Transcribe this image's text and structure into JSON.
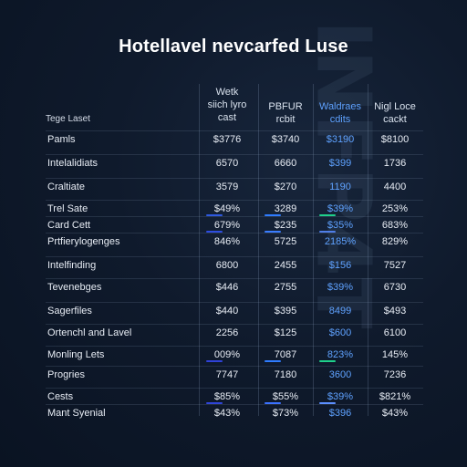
{
  "watermark": "INFP4T",
  "chart_data": {
    "type": "table",
    "title": "Hotellavel nevcarfed Luse",
    "columns": [
      {
        "label": "Wetk\nsiich lyro\ncast",
        "color": "#d9e2ee"
      },
      {
        "label": "PBFUR\nrcbit",
        "color": "#d9e2ee"
      },
      {
        "label": "Waldraes\ncdits",
        "color": "#5fa2ff"
      },
      {
        "label": "Nigl Loce\ncackt",
        "color": "#d9e2ee"
      }
    ],
    "corner_label": "Tege Laset",
    "rows": [
      {
        "label": "Pamls",
        "values": [
          "$3776",
          "$3740",
          "$3190",
          "$8100"
        ]
      },
      {
        "label": "Intelalidiats",
        "values": [
          "6570",
          "6660",
          "$399",
          "1736"
        ]
      },
      {
        "label": "Craltiate",
        "values": [
          "3579",
          "$270",
          "1190",
          "4400"
        ]
      },
      {
        "label": "Trel Sate",
        "values": [
          "$49%",
          "3289",
          "$39%",
          "253%"
        ],
        "markers": [
          "#2f5ae0",
          "#2f7cff",
          "#1fd08b"
        ]
      },
      {
        "label": "Card Cett",
        "values": [
          "679%",
          "$235",
          "$35%",
          "683%"
        ],
        "markers": [
          "#2d4de0",
          "#3a7cff",
          "#4f7ee8"
        ]
      },
      {
        "label": "Prtfierylogenges",
        "values": [
          "846%",
          "5725",
          "2185%",
          "829%"
        ]
      },
      {
        "label": "Intelfinding",
        "values": [
          "6800",
          "2455",
          "$156",
          "7527"
        ]
      },
      {
        "label": "Tevenebges",
        "values": [
          "$446",
          "2755",
          "$39%",
          "6730"
        ]
      },
      {
        "label": "Sagerfiles",
        "values": [
          "$440",
          "$395",
          "8499",
          "$493"
        ]
      },
      {
        "label": "Ortenchl and Lavel",
        "values": [
          "2256",
          "$125",
          "$600",
          "6100"
        ]
      },
      {
        "label": "Monling Lets",
        "values": [
          "009%",
          "7087",
          "823%",
          "145%"
        ],
        "markers": [
          "#2f42d8",
          "#2f7cff",
          "#1fd08b"
        ]
      },
      {
        "label": "Progries",
        "values": [
          "7747",
          "7180",
          "3600",
          "7236"
        ]
      },
      {
        "label": "Cests",
        "values": [
          "$85%",
          "$55%",
          "$39%",
          "$821%"
        ],
        "markers": [
          "#2f45d8",
          "#3b71ff",
          "#5c8fff"
        ]
      },
      {
        "label": "Mant Syenial",
        "values": [
          "$43%",
          "$73%",
          "$396",
          "$43%"
        ]
      }
    ]
  }
}
